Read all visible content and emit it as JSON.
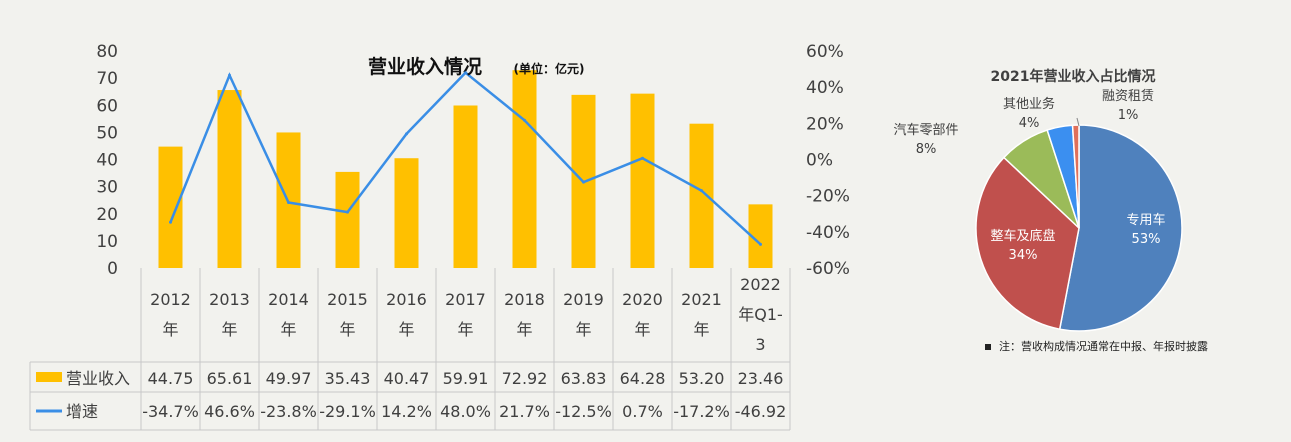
{
  "chart_data": [
    {
      "type": "bar+line",
      "title": "营业收入情况",
      "unit_note": "(单位：亿元)",
      "categories": [
        "2012年",
        "2013年",
        "2014年",
        "2015年",
        "2016年",
        "2017年",
        "2018年",
        "2019年",
        "2020年",
        "2021年",
        "2022年Q1-3"
      ],
      "series": [
        {
          "name": "营业收入",
          "kind": "bar",
          "axis": "left",
          "color": "#ffc000",
          "values": [
            44.75,
            65.61,
            49.97,
            35.43,
            40.47,
            59.91,
            72.92,
            63.83,
            64.28,
            53.2,
            23.46
          ],
          "labels": [
            "44.75",
            "65.61",
            "49.97",
            "35.43",
            "40.47",
            "59.91",
            "72.92",
            "63.83",
            "64.28",
            "53.20",
            "23.46"
          ]
        },
        {
          "name": "增速",
          "kind": "line",
          "axis": "right",
          "color": "#3a8ee6",
          "values": [
            -34.7,
            46.6,
            -23.8,
            -29.1,
            14.2,
            48.0,
            21.7,
            -12.5,
            0.7,
            -17.2,
            -46.92
          ],
          "labels": [
            "-34.7%",
            "46.6%",
            "-23.8%",
            "-29.1%",
            "14.2%",
            "48.0%",
            "21.7%",
            "-12.5%",
            "0.7%",
            "-17.2%",
            "-46.92"
          ]
        }
      ],
      "y_left": {
        "min": 0,
        "max": 80,
        "ticks": [
          "0",
          "10",
          "20",
          "30",
          "40",
          "50",
          "60",
          "70",
          "80"
        ]
      },
      "y_right": {
        "min": -60,
        "max": 60,
        "ticks": [
          "-60%",
          "-40%",
          "-20%",
          "0%",
          "20%",
          "40%",
          "60%"
        ]
      },
      "grid": false,
      "legend": "data-table"
    },
    {
      "type": "pie",
      "title": "2021年营业收入占比情况",
      "slices": [
        {
          "label": "专用车",
          "value": 53,
          "pct_label": "53%",
          "color": "#4f81bd"
        },
        {
          "label": "整车及底盘",
          "value": 34,
          "pct_label": "34%",
          "color": "#c0504d"
        },
        {
          "label": "汽车零部件",
          "value": 8,
          "pct_label": "8%",
          "color": "#9bbb59"
        },
        {
          "label": "其他业务",
          "value": 4,
          "pct_label": "4%",
          "color": "#3b8ff0"
        },
        {
          "label": "融资租赁",
          "value": 1,
          "pct_label": "1%",
          "color": "#e0705a"
        }
      ],
      "note": "注：营收构成情况通常在中报、年报时披露"
    }
  ]
}
